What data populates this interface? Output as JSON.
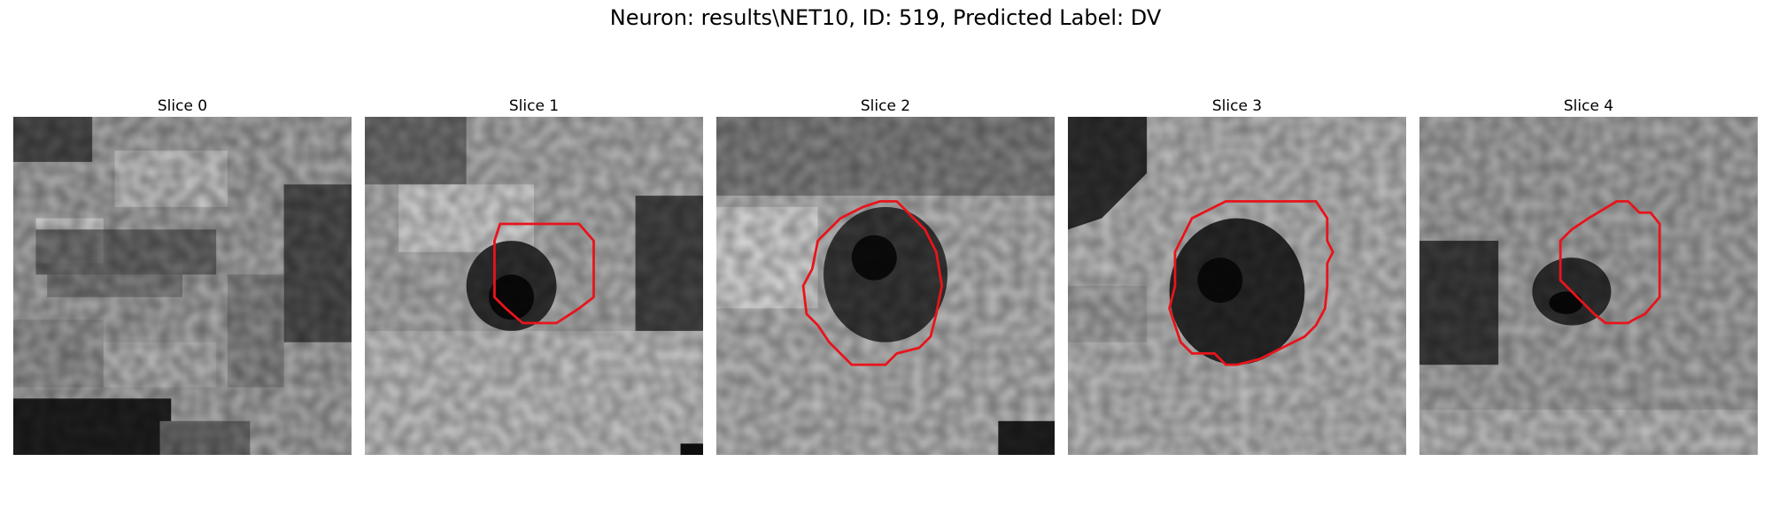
{
  "figure": {
    "title": "Neuron: results\\NET10, ID: 519, Predicted Label: DV"
  },
  "colors": {
    "contour": "#e8141b"
  },
  "panels": [
    {
      "title": "Slice 0",
      "has_contour": false
    },
    {
      "title": "Slice 1",
      "has_contour": true
    },
    {
      "title": "Slice 2",
      "has_contour": true
    },
    {
      "title": "Slice 3",
      "has_contour": true
    },
    {
      "title": "Slice 4",
      "has_contour": true
    }
  ]
}
